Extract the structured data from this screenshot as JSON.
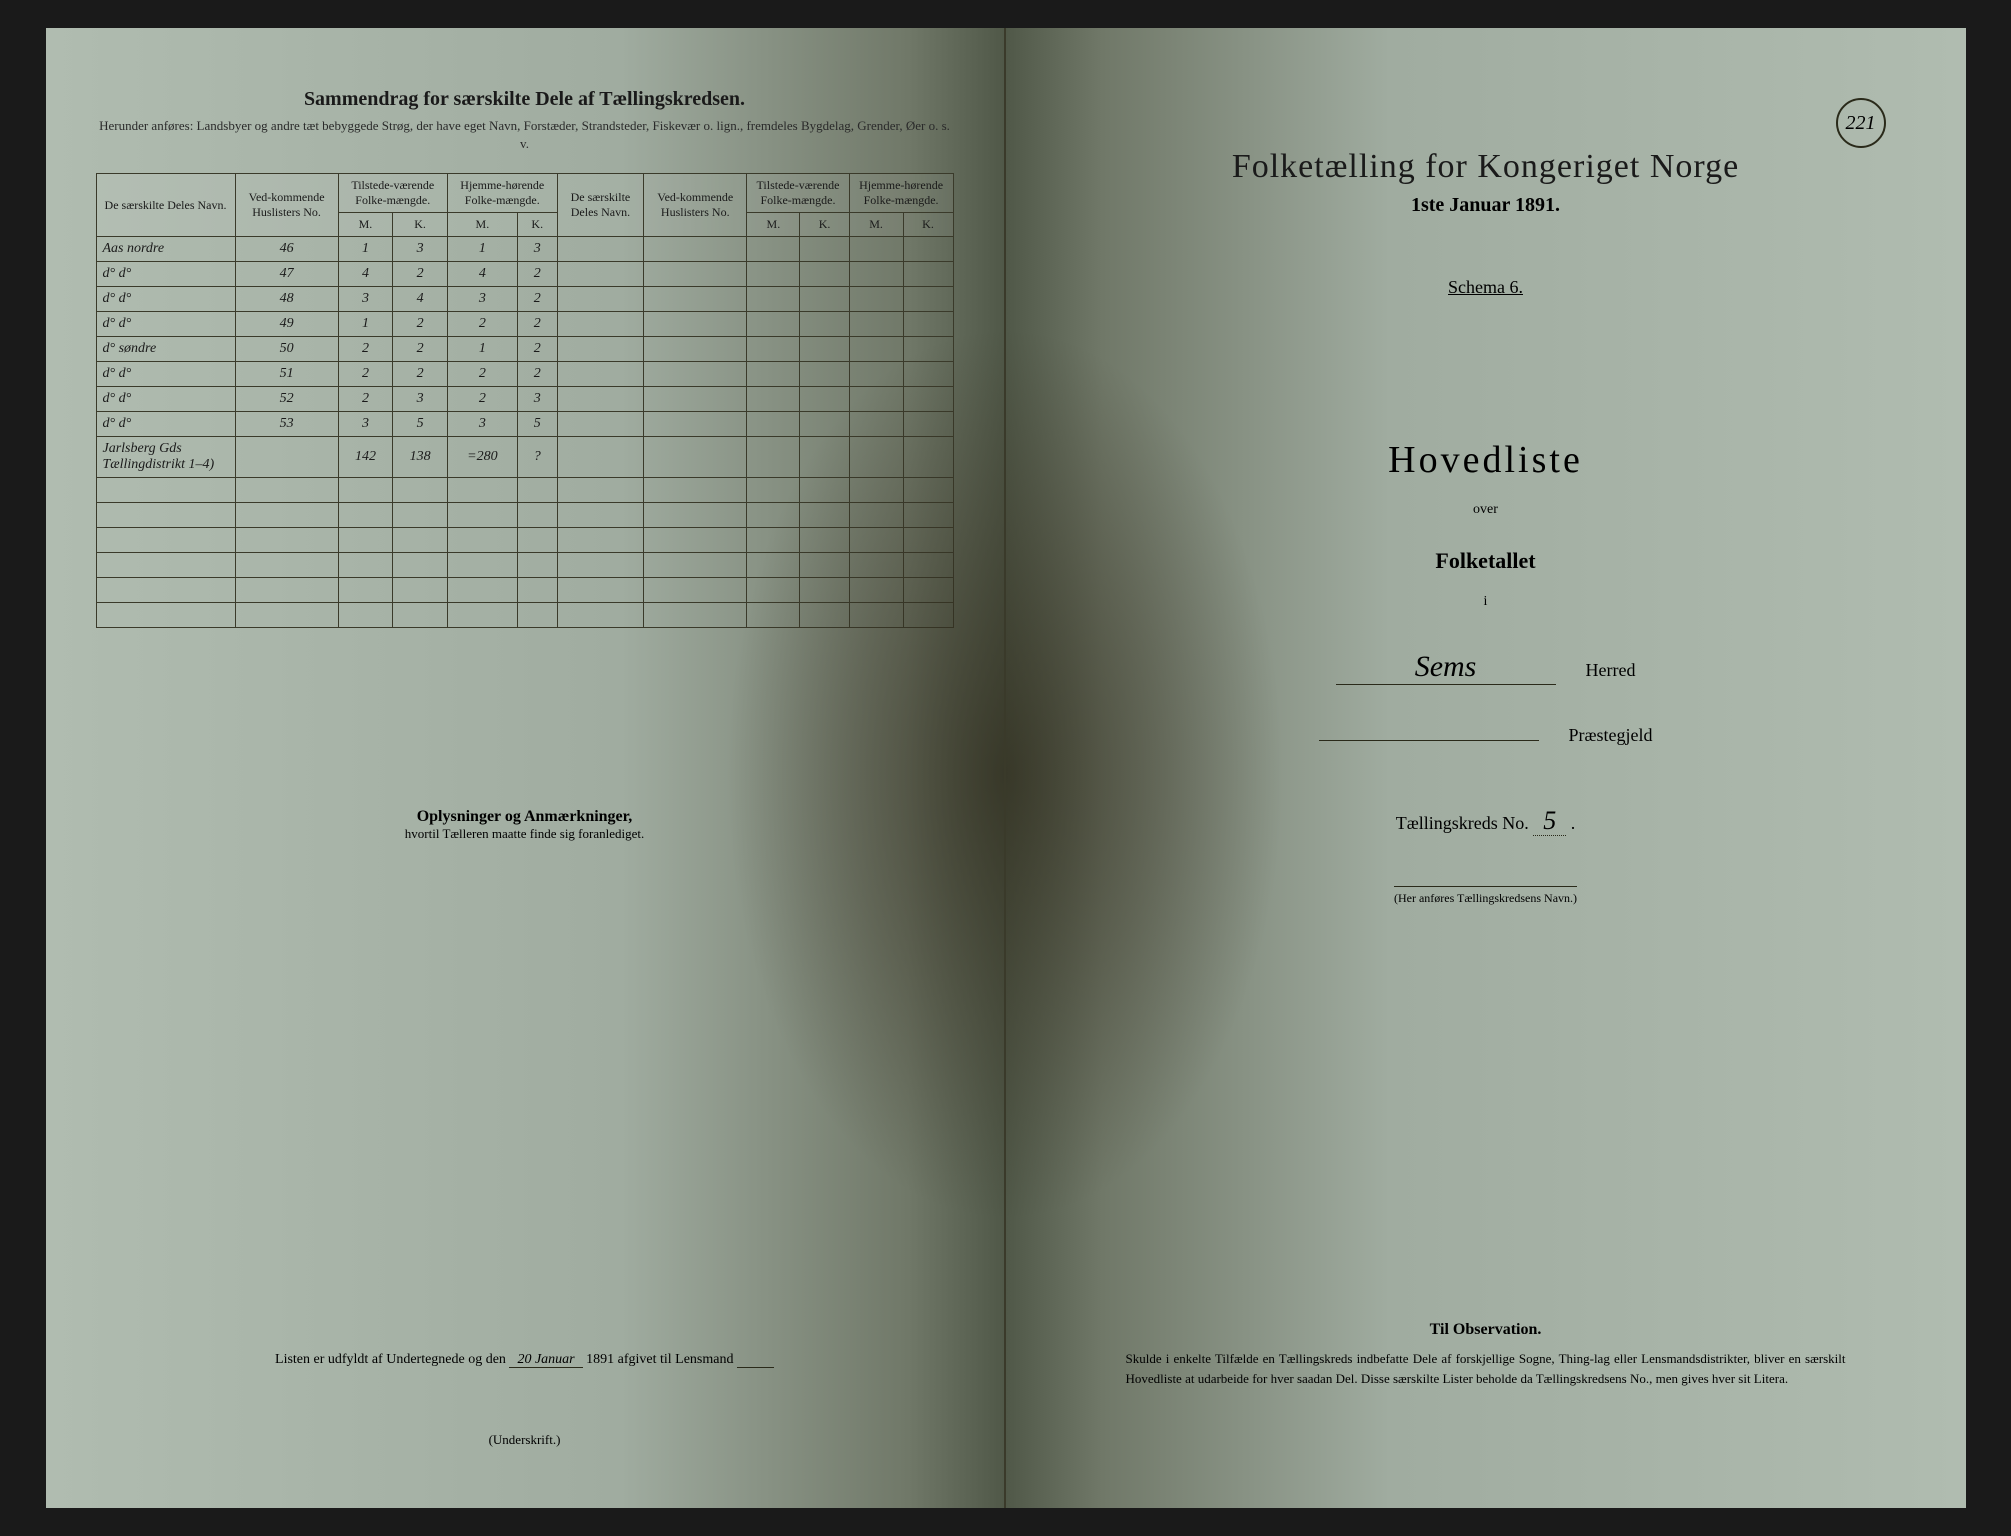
{
  "page_number": "221",
  "left": {
    "title": "Sammendrag for særskilte Dele af Tællingskredsen.",
    "subtitle": "Herunder anføres: Landsbyer og andre tæt bebyggede Strøg, der have eget Navn, Forstæder, Strandsteder, Fiskevær o. lign., fremdeles Bygdelag, Grender, Øer o. s. v.",
    "headers": {
      "name": "De særskilte Deles Navn.",
      "huslisters": "Ved-kommende Huslisters No.",
      "tilstede": "Tilstede-værende Folke-mængde.",
      "hjemme": "Hjemme-hørende Folke-mængde.",
      "m": "M.",
      "k": "K."
    },
    "rows": [
      {
        "name": "Aas nordre",
        "no": "46",
        "tm": "1",
        "tk": "3",
        "hm": "1",
        "hk": "3"
      },
      {
        "name": "d°  d°",
        "no": "47",
        "tm": "4",
        "tk": "2",
        "hm": "4",
        "hk": "2"
      },
      {
        "name": "d°  d°",
        "no": "48",
        "tm": "3",
        "tk": "4",
        "hm": "3",
        "hk": "2"
      },
      {
        "name": "d°  d°",
        "no": "49",
        "tm": "1",
        "tk": "2",
        "hm": "2",
        "hk": "2"
      },
      {
        "name": "d°  søndre",
        "no": "50",
        "tm": "2",
        "tk": "2",
        "hm": "1",
        "hk": "2"
      },
      {
        "name": "d°  d°",
        "no": "51",
        "tm": "2",
        "tk": "2",
        "hm": "2",
        "hk": "2"
      },
      {
        "name": "d°  d°",
        "no": "52",
        "tm": "2",
        "tk": "3",
        "hm": "2",
        "hk": "3"
      },
      {
        "name": "d°  d°",
        "no": "53",
        "tm": "3",
        "tk": "5",
        "hm": "3",
        "hk": "5"
      },
      {
        "name": "Jarlsberg Gds Tællingdistrikt 1–4)",
        "no": "",
        "tm": "142",
        "tk": "138",
        "hm": "=280",
        "hk": "?"
      }
    ],
    "oplysninger_title": "Oplysninger og Anmærkninger,",
    "oplysninger_sub": "hvortil Tælleren maatte finde sig foranlediget.",
    "listen_prefix": "Listen er udfyldt af Undertegnede og den",
    "listen_date": "20 Januar",
    "listen_year": "1891 afgivet til Lensmand",
    "underskrift": "(Underskrift.)"
  },
  "right": {
    "title": "Folketælling for Kongeriget Norge",
    "date": "1ste Januar 1891.",
    "schema": "Schema 6.",
    "hovedliste": "Hovedliste",
    "over": "over",
    "folketallet": "Folketallet",
    "i": "i",
    "herred_value": "Sems",
    "herred_label": "Herred",
    "prestegjeld_value": "",
    "prestegjeld_label": "Præstegjeld",
    "kreds_label": "Tællingskreds No.",
    "kreds_value": "5",
    "navn_note": "(Her anføres Tællingskredsens Navn.)",
    "obs_title": "Til Observation.",
    "obs_body": "Skulde i enkelte Tilfælde en Tællingskreds indbefatte Dele af forskjellige Sogne, Thing-lag eller Lensmandsdistrikter, bliver en særskilt Hovedliste at udarbeide for hver saadan Del. Disse særskilte Lister beholde da Tællingskredsens No., men gives hver sit Litera."
  },
  "colors": {
    "paper": "#a8b4a8",
    "ink": "#1a1a1a",
    "stain": "#3a3525",
    "border": "#3a3a2a"
  },
  "typography": {
    "title_fontsize": 34,
    "body_fontsize": 14,
    "font_family": "Georgia, serif"
  }
}
